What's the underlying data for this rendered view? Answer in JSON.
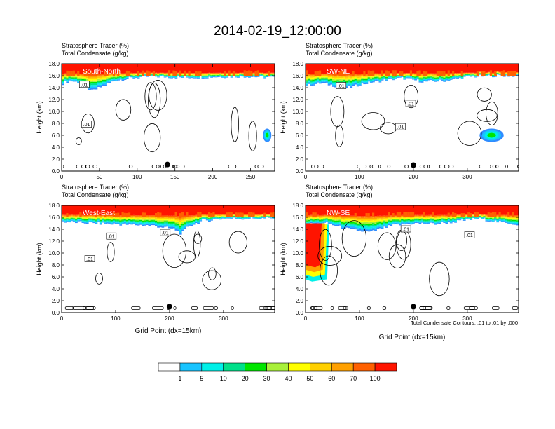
{
  "title": "2014-02-19_12:00:00",
  "colors": {
    "levels": [
      "#ffffff",
      "#2f8bff",
      "#18c4ff",
      "#00f0e8",
      "#00e08a",
      "#00e600",
      "#a8f03a",
      "#ffff00",
      "#ffd000",
      "#ffa000",
      "#ff6000",
      "#ff1400"
    ],
    "frame": "#000000",
    "contour": "#000000"
  },
  "colorbar": {
    "labels": [
      "1",
      "5",
      "10",
      "20",
      "30",
      "40",
      "50",
      "60",
      "70",
      "100"
    ]
  },
  "contour_note": "Total Condensate Contours: .01 to .01 by .000",
  "chart_data": [
    {
      "type": "heatmap",
      "name": "South-North",
      "title_lines": [
        "Stratosphere Tracer   (%)",
        "Total Condensate   (g/kg)"
      ],
      "ylabel": "Height (km)",
      "xlabel": "",
      "xlim": [
        0,
        282
      ],
      "ylim": [
        0,
        18
      ],
      "xticks": [
        0,
        50,
        100,
        150,
        200,
        250
      ],
      "yticks": [
        "0.0",
        "2.0",
        "4.0",
        "6.0",
        "8.0",
        "10.0",
        "12.0",
        "14.0",
        "16.0",
        "18.0"
      ],
      "tracer_base": [
        [
          0,
          14.6
        ],
        [
          10,
          15.2
        ],
        [
          25,
          14.8
        ],
        [
          40,
          13.4
        ],
        [
          55,
          14.3
        ],
        [
          70,
          15.2
        ],
        [
          90,
          15.6
        ],
        [
          120,
          15.9
        ],
        [
          160,
          15.7
        ],
        [
          200,
          15.8
        ],
        [
          240,
          15.9
        ],
        [
          282,
          15.7
        ]
      ],
      "tracer_blobs": [
        [
          272,
          6.0,
          4,
          0.8
        ]
      ],
      "contour_labels": [
        [
          30,
          14.5,
          ".01"
        ],
        [
          33,
          7.8,
          ".01"
        ]
      ],
      "marker": [
        140,
        1.1
      ]
    },
    {
      "type": "heatmap",
      "name": "SW-NE",
      "title_lines": [
        "Stratosphere Tracer   (%)",
        "Total Condensate   (g/kg)"
      ],
      "ylabel": "Height (km)",
      "xlabel": "",
      "xlim": [
        0,
        395
      ],
      "ylim": [
        0,
        18
      ],
      "xticks": [
        0,
        100,
        200,
        300
      ],
      "yticks": [
        "0.0",
        "2.0",
        "4.0",
        "6.0",
        "8.0",
        "10.0",
        "12.0",
        "14.0",
        "16.0",
        "18.0"
      ],
      "tracer_base": [
        [
          0,
          14.3
        ],
        [
          30,
          14.8
        ],
        [
          60,
          14.2
        ],
        [
          80,
          14.0
        ],
        [
          110,
          14.7
        ],
        [
          150,
          15.3
        ],
        [
          180,
          15.6
        ],
        [
          220,
          15.0
        ],
        [
          260,
          15.2
        ],
        [
          300,
          15.8
        ],
        [
          340,
          16.0
        ],
        [
          395,
          16.0
        ]
      ],
      "tracer_blobs": [
        [
          345,
          6.0,
          16,
          0.8
        ]
      ],
      "contour_labels": [
        [
          66,
          14.3,
          ".01"
        ],
        [
          195,
          11.3,
          ".01"
        ],
        [
          176,
          7.4,
          ".01"
        ]
      ],
      "marker": [
        200,
        1.0
      ]
    },
    {
      "type": "heatmap",
      "name": "West-East",
      "title_lines": [
        "Stratosphere Tracer   (%)",
        "Total Condensate   (g/kg)"
      ],
      "ylabel": "Height (km)",
      "xlabel": "Grid Point (dx=15km)",
      "xlim": [
        0,
        395
      ],
      "ylim": [
        0,
        18
      ],
      "xticks": [
        0,
        100,
        200,
        300
      ],
      "yticks": [
        "0.0",
        "2.0",
        "4.0",
        "6.0",
        "8.0",
        "10.0",
        "12.0",
        "14.0",
        "16.0",
        "18.0"
      ],
      "tracer_base": [
        [
          0,
          15.3
        ],
        [
          60,
          15.0
        ],
        [
          120,
          14.8
        ],
        [
          170,
          14.6
        ],
        [
          210,
          14.0
        ],
        [
          222,
          13.2
        ],
        [
          235,
          14.5
        ],
        [
          260,
          15.4
        ],
        [
          300,
          15.8
        ],
        [
          395,
          15.8
        ]
      ],
      "tracer_blobs": [],
      "contour_labels": [
        [
          92,
          12.8,
          ".01"
        ],
        [
          52,
          9.0,
          ".01"
        ],
        [
          192,
          13.4,
          ".01"
        ]
      ],
      "marker": [
        200,
        1.0
      ]
    },
    {
      "type": "heatmap",
      "name": "NW-SE",
      "title_lines": [
        "Stratosphere Tracer   (%)",
        "Total Condensate   (g/kg)"
      ],
      "ylabel": "Height (km)",
      "xlabel": "Grid Point (dx=15km)",
      "xlim": [
        0,
        395
      ],
      "ylim": [
        0,
        18
      ],
      "xticks": [
        0,
        100,
        200,
        300
      ],
      "yticks": [
        "0.0",
        "2.0",
        "4.0",
        "6.0",
        "8.0",
        "10.0",
        "12.0",
        "14.0",
        "16.0",
        "18.0"
      ],
      "tracer_base": [
        [
          0,
          14.8
        ],
        [
          40,
          15.0
        ],
        [
          80,
          14.0
        ],
        [
          120,
          13.5
        ],
        [
          160,
          14.6
        ],
        [
          200,
          15.0
        ],
        [
          240,
          14.9
        ],
        [
          280,
          15.3
        ],
        [
          320,
          15.8
        ],
        [
          360,
          15.2
        ],
        [
          395,
          14.8
        ]
      ],
      "tracer_blobs": [],
      "contour_labels": [
        [
          186,
          14.0,
          ".01"
        ],
        [
          304,
          13.0,
          ".01"
        ]
      ],
      "marker": [
        200,
        1.0
      ]
    }
  ]
}
